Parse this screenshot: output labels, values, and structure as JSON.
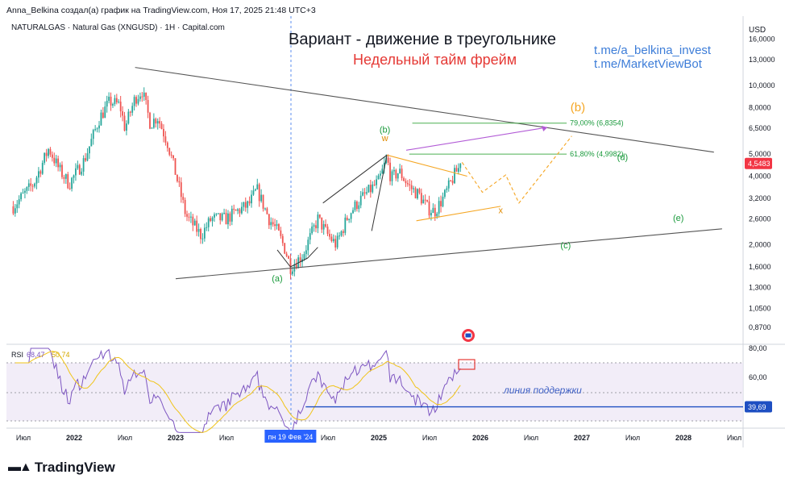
{
  "header": {
    "publish_line": "Anna_Belkina создал(а) график на TradingView.com, Ноя 17, 2025 21:48 UTC+3",
    "symbol_line": "NATURALGAS · Natural Gas (XNGUSD) · 1Н · Capital.com",
    "currency": "USD"
  },
  "annotations": {
    "title": "Вариант - движение в треугольнике",
    "subtitle": "Недельный тайм фрейм",
    "link1": "t.me/a_belkina_invest",
    "link2": "t.me/MarketViewBot"
  },
  "colors": {
    "candle_up": "#26a69a",
    "candle_down": "#ef5350",
    "triangle_line": "#555555",
    "wave_green": "#1a9a3c",
    "fib_green": "#4caf50",
    "orange": "#f5a623",
    "violet": "#b25bd6",
    "rsi_line": "#7e57c2",
    "rsi_ma": "#f0c419",
    "support_blue": "#1e4fc2",
    "price_label": "#f23645"
  },
  "chart_data": {
    "type": "candlestick",
    "scale": "log",
    "price_axis_ticks": [
      "16,0000",
      "13,0000",
      "10,0000",
      "8,0000",
      "6,5000",
      "5,0000",
      "4,0000",
      "3,2000",
      "2,6000",
      "2,0000",
      "1,6000",
      "1,3000",
      "1,0500",
      "0,8700"
    ],
    "price_axis_values": [
      16,
      13,
      10,
      8,
      6.5,
      5,
      4,
      3.2,
      2.6,
      2,
      1.6,
      1.3,
      1.05,
      0.87
    ],
    "current_price": "4,5483",
    "current_price_value": 4.5483,
    "time_axis_labels": [
      "Июл",
      "2022",
      "Июл",
      "2023",
      "Июл",
      "пн 19 Фев '24",
      "Июл",
      "2025",
      "Июл",
      "2026",
      "Июл",
      "2027",
      "Июл",
      "2028",
      "Июл"
    ],
    "time_axis_years": [
      2021.5,
      2022.0,
      2022.5,
      2023.0,
      2023.5,
      2024.13,
      2024.5,
      2025.0,
      2025.5,
      2026.0,
      2026.5,
      2027.0,
      2027.5,
      2028.0,
      2028.5
    ],
    "price_path": [
      [
        2021.4,
        2.95
      ],
      [
        2021.6,
        3.7
      ],
      [
        2021.75,
        5.3
      ],
      [
        2021.85,
        4.3
      ],
      [
        2021.95,
        3.7
      ],
      [
        2022.1,
        4.7
      ],
      [
        2022.25,
        7.2
      ],
      [
        2022.35,
        8.5
      ],
      [
        2022.45,
        8.2
      ],
      [
        2022.5,
        6.5
      ],
      [
        2022.6,
        8.8
      ],
      [
        2022.67,
        9.5
      ],
      [
        2022.75,
        6.8
      ],
      [
        2022.82,
        7.3
      ],
      [
        2022.92,
        5.6
      ],
      [
        2023.0,
        4.1
      ],
      [
        2023.1,
        2.7
      ],
      [
        2023.25,
        2.2
      ],
      [
        2023.35,
        2.6
      ],
      [
        2023.5,
        2.6
      ],
      [
        2023.6,
        2.8
      ],
      [
        2023.72,
        3.0
      ],
      [
        2023.8,
        3.5
      ],
      [
        2023.92,
        2.6
      ],
      [
        2024.0,
        2.3
      ],
      [
        2024.08,
        1.9
      ],
      [
        2024.13,
        1.6
      ],
      [
        2024.25,
        1.8
      ],
      [
        2024.4,
        2.6
      ],
      [
        2024.5,
        2.2
      ],
      [
        2024.58,
        2.0
      ],
      [
        2024.7,
        2.7
      ],
      [
        2024.8,
        3.1
      ],
      [
        2024.92,
        3.5
      ],
      [
        2025.0,
        3.8
      ],
      [
        2025.08,
        4.8
      ],
      [
        2025.12,
        3.9
      ],
      [
        2025.2,
        4.2
      ],
      [
        2025.3,
        3.6
      ],
      [
        2025.4,
        3.3
      ],
      [
        2025.48,
        2.9
      ],
      [
        2025.55,
        2.8
      ],
      [
        2025.65,
        3.3
      ],
      [
        2025.75,
        4.1
      ],
      [
        2025.82,
        4.55
      ]
    ],
    "triangle_lines": [
      {
        "name": "upper",
        "from": [
          2022.6,
          12.0
        ],
        "to": [
          2028.3,
          5.1
        ]
      },
      {
        "name": "lower",
        "from": [
          2023.0,
          1.42
        ],
        "to": [
          2028.38,
          2.35
        ]
      }
    ],
    "wave_labels": [
      "(a)",
      "(b)",
      "(c)",
      "(d)",
      "(e)",
      "w",
      "x"
    ],
    "wave_labels_orange_big": "(b)",
    "rsi_subchart": {
      "label": "RSI",
      "value": "68,47",
      "ma_value": "50,74",
      "axis_ticks": [
        "80,00",
        "60,00"
      ],
      "axis_tick_values": [
        80,
        60
      ],
      "level_70": 70,
      "level_30": 30,
      "support_level": "39,69",
      "support_value": 39.69,
      "support_text": "линия поддержки"
    },
    "fib_levels": [
      {
        "label": "61,80% (4,9982)",
        "value": 4.9982
      },
      {
        "label": "79,00% (6,8354)",
        "value": 6.8354
      }
    ]
  }
}
